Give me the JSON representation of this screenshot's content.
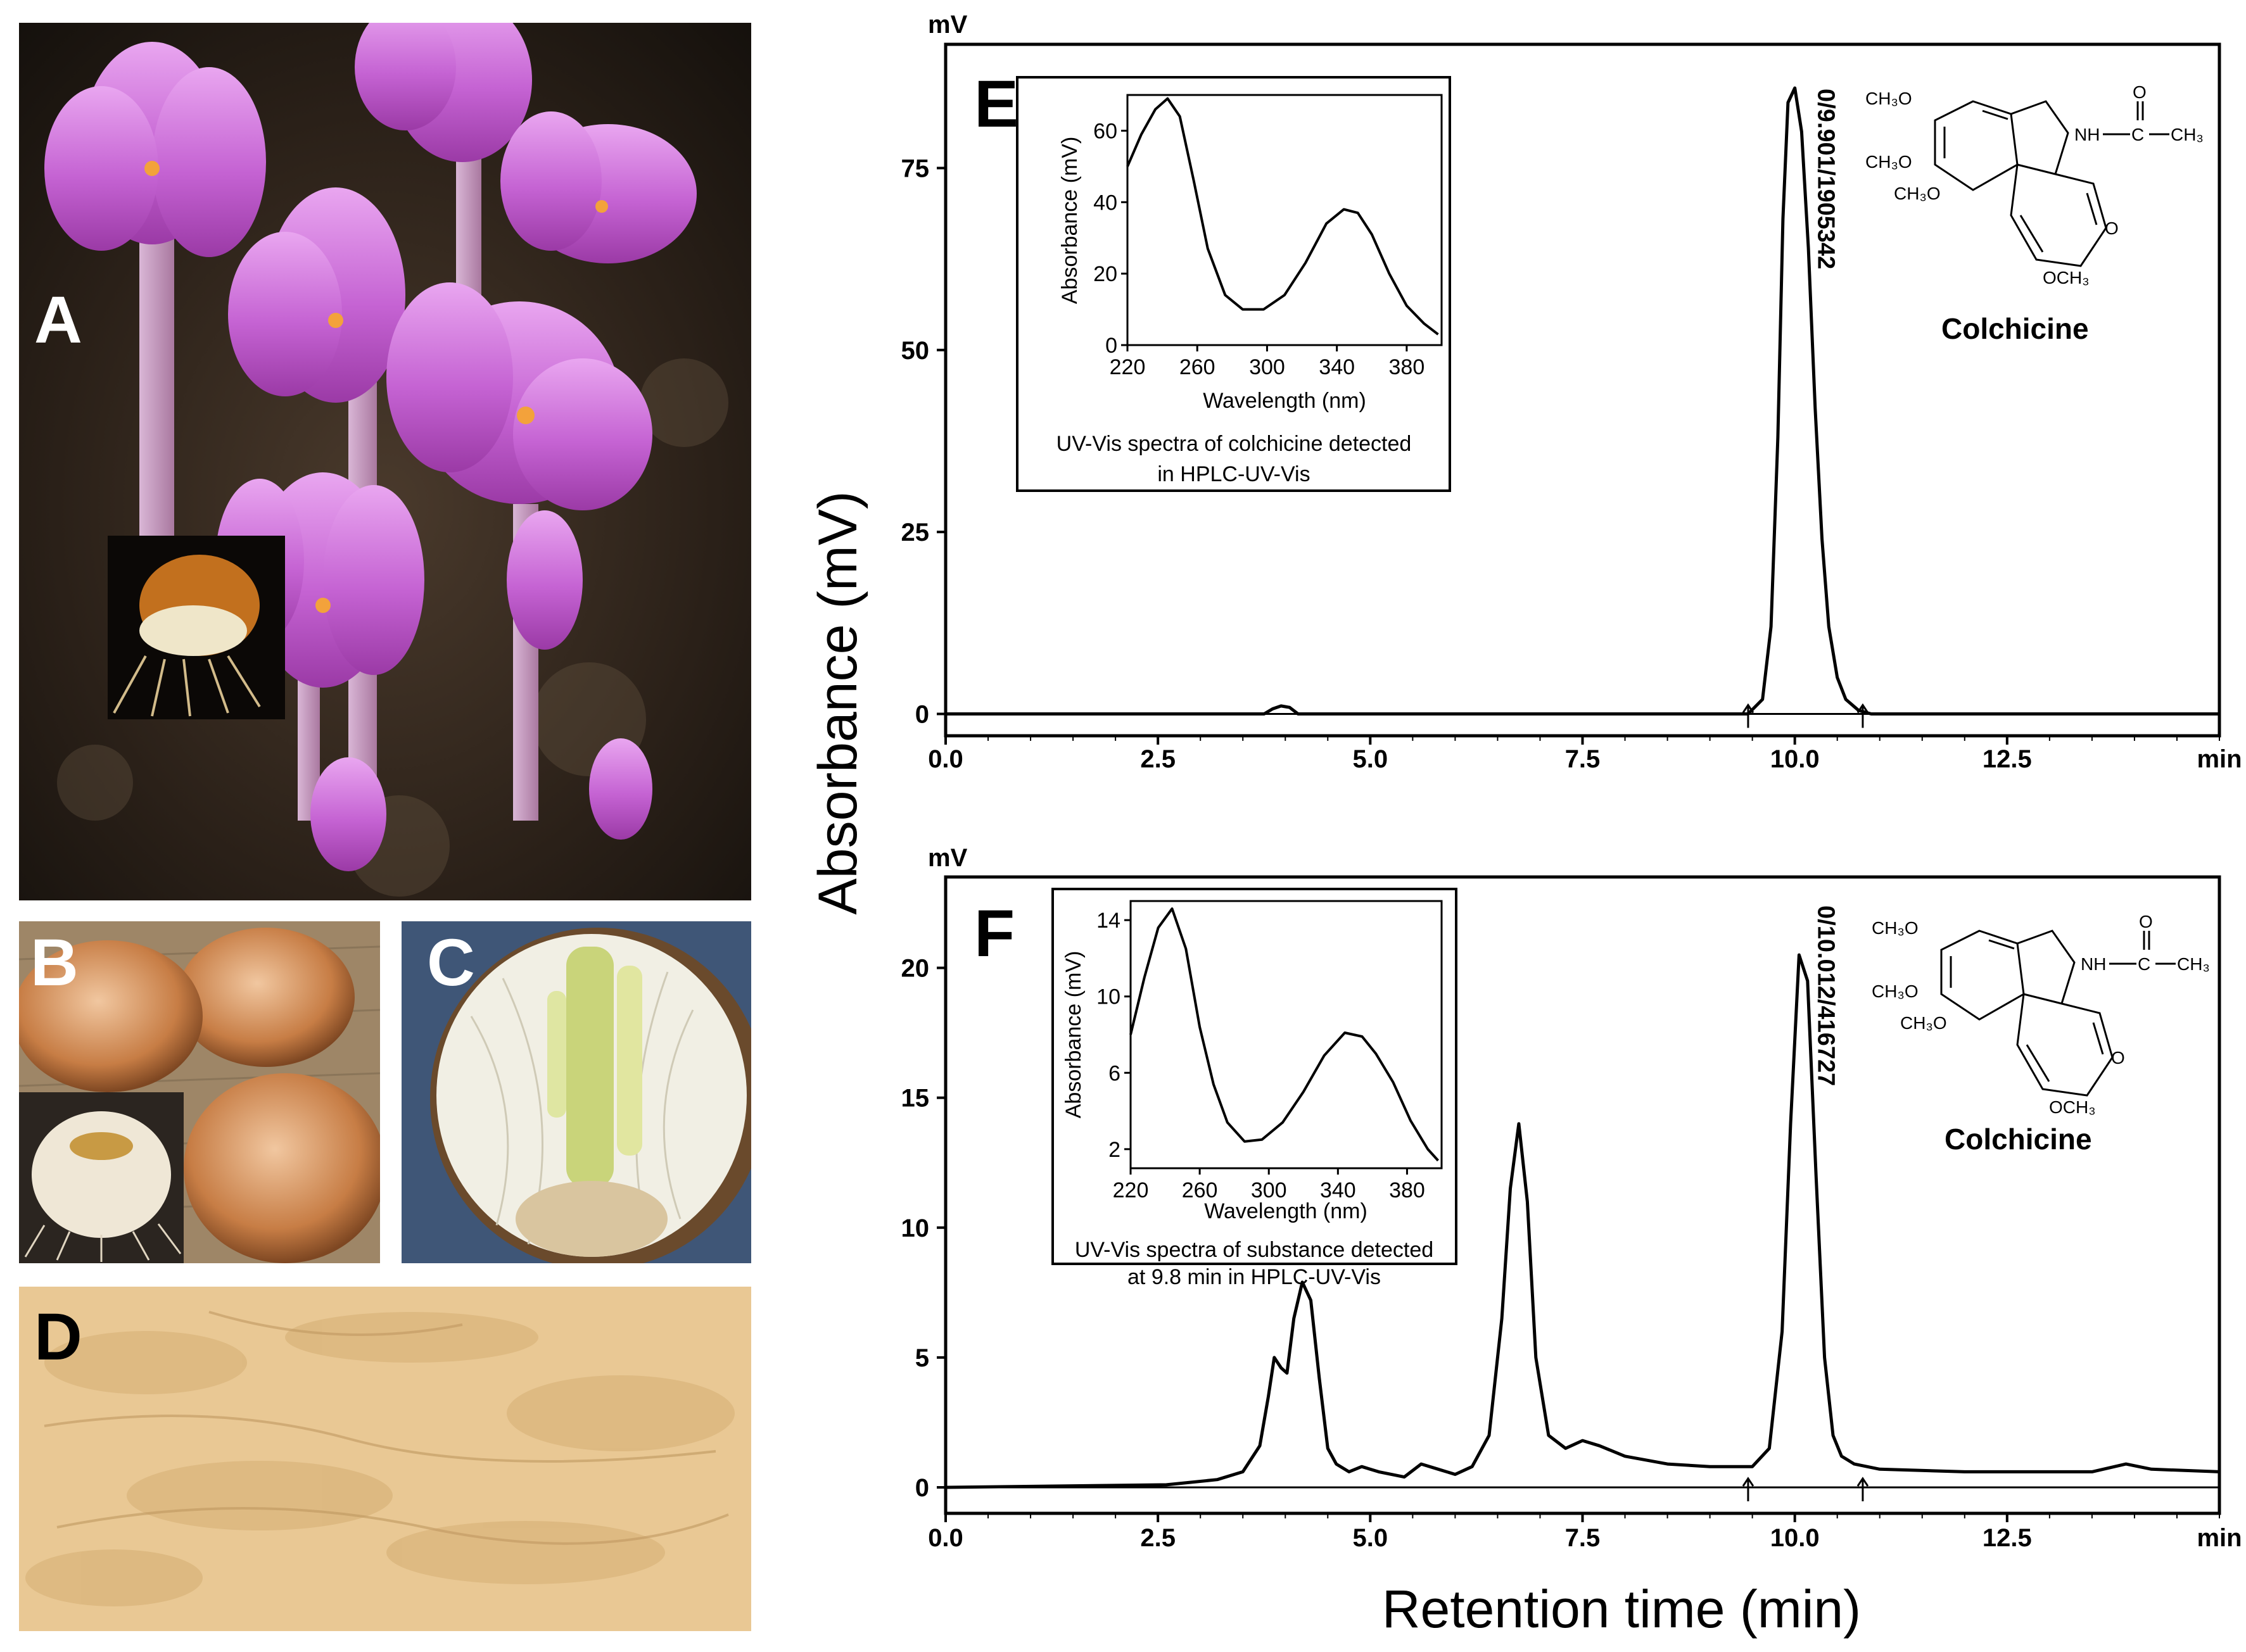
{
  "panels": {
    "A": "A",
    "B": "B",
    "C": "C",
    "D": "D",
    "E": "E",
    "F": "F"
  },
  "axes": {
    "y_title": "Absorbance (mV)",
    "x_title": "Retention time (min)",
    "unit_top": "mV",
    "unit_right": "min"
  },
  "inset_axes": {
    "ylabel": "Absorbance (mV)",
    "xlabel": "Wavelength (nm)"
  },
  "structure_label": "Colchicine",
  "structure_groups": {
    "ch3o": "CH₃O",
    "och3": "OCH₃",
    "nh": "NH",
    "c": "C",
    "ch3": "CH₃",
    "o": "O"
  },
  "chart_data": [
    {
      "id": "E",
      "type": "line",
      "title": "",
      "xlabel": "Retention time (min)",
      "ylabel": "Absorbance (mV)",
      "xlim": [
        0,
        15
      ],
      "ylim": [
        -3,
        92
      ],
      "xticks": [
        0.0,
        2.5,
        5.0,
        7.5,
        10.0,
        12.5
      ],
      "xtick_labels": [
        "0.0",
        "2.5",
        "5.0",
        "7.5",
        "10.0",
        "12.5"
      ],
      "yticks": [
        0,
        25,
        50,
        75
      ],
      "grid": false,
      "peak_label": "0/9.901/1905342",
      "markers": [
        9.45,
        10.8
      ],
      "series": [
        {
          "x": [
            0,
            3.75,
            3.85,
            3.95,
            4.05,
            4.15,
            9.45,
            9.62,
            9.72,
            9.8,
            9.86,
            9.92,
            10.0,
            10.08,
            10.16,
            10.24,
            10.32,
            10.4,
            10.5,
            10.6,
            10.75,
            10.9,
            15
          ],
          "y": [
            0,
            0,
            0.7,
            1.1,
            0.9,
            0,
            0,
            2,
            12,
            38,
            68,
            84,
            86,
            80,
            64,
            42,
            24,
            12,
            5,
            2,
            0.5,
            0,
            0
          ]
        }
      ]
    },
    {
      "id": "F",
      "type": "line",
      "title": "",
      "xlabel": "Retention time (min)",
      "ylabel": "Absorbance (mV)",
      "xlim": [
        0,
        15
      ],
      "ylim": [
        -1,
        23.5
      ],
      "xticks": [
        0.0,
        2.5,
        5.0,
        7.5,
        10.0,
        12.5
      ],
      "xtick_labels": [
        "0.0",
        "2.5",
        "5.0",
        "7.5",
        "10.0",
        "12.5"
      ],
      "yticks": [
        0,
        5,
        10,
        15,
        20
      ],
      "grid": false,
      "peak_label": "0/10.012/416727",
      "markers": [
        9.45,
        10.8
      ],
      "series": [
        {
          "x": [
            0,
            2.6,
            3.2,
            3.5,
            3.7,
            3.8,
            3.87,
            3.95,
            4.02,
            4.1,
            4.2,
            4.3,
            4.4,
            4.5,
            4.6,
            4.75,
            4.9,
            5.1,
            5.4,
            5.6,
            5.8,
            6.0,
            6.2,
            6.4,
            6.55,
            6.65,
            6.75,
            6.85,
            6.95,
            7.1,
            7.3,
            7.5,
            7.7,
            8.0,
            8.5,
            9.0,
            9.5,
            9.7,
            9.85,
            9.95,
            10.05,
            10.15,
            10.25,
            10.35,
            10.45,
            10.55,
            10.7,
            11.0,
            12.0,
            13.5,
            13.9,
            14.2,
            15
          ],
          "y": [
            0,
            0.1,
            0.3,
            0.6,
            1.6,
            3.5,
            5.0,
            4.6,
            4.4,
            6.5,
            7.9,
            7.2,
            4.2,
            1.5,
            0.9,
            0.6,
            0.8,
            0.6,
            0.4,
            0.9,
            0.7,
            0.5,
            0.8,
            2.0,
            6.5,
            11.5,
            14.0,
            11.0,
            5.0,
            2.0,
            1.5,
            1.8,
            1.6,
            1.2,
            0.9,
            0.8,
            0.8,
            1.5,
            6.0,
            14.0,
            20.5,
            19.5,
            12.0,
            5.0,
            2.0,
            1.2,
            0.9,
            0.7,
            0.6,
            0.6,
            0.9,
            0.7,
            0.6
          ]
        }
      ]
    },
    {
      "id": "E-inset",
      "type": "line",
      "title": "UV-Vis spectra of colchicine detected\nin HPLC-UV-Vis",
      "xlabel": "Wavelength (nm)",
      "ylabel": "Absorbance (mV)",
      "xlim": [
        220,
        400
      ],
      "ylim": [
        0,
        70
      ],
      "xticks": [
        220,
        260,
        300,
        340,
        380
      ],
      "yticks": [
        0,
        20,
        40,
        60
      ],
      "grid": false,
      "series": [
        {
          "x": [
            220,
            228,
            236,
            243,
            250,
            258,
            266,
            276,
            286,
            298,
            310,
            322,
            334,
            344,
            352,
            360,
            370,
            380,
            390,
            398
          ],
          "y": [
            50,
            59,
            66,
            69,
            64,
            46,
            27,
            14,
            10,
            10,
            14,
            23,
            34,
            38,
            37,
            31,
            20,
            11,
            6,
            3
          ]
        }
      ]
    },
    {
      "id": "F-inset",
      "type": "line",
      "title": "UV-Vis spectra of  substance  detected\nat 9.8 min in HPLC-UV-Vis",
      "xlabel": "Wavelength (nm)",
      "ylabel": "Absorbance (mV)",
      "xlim": [
        220,
        400
      ],
      "ylim": [
        1,
        15
      ],
      "xticks": [
        220,
        260,
        300,
        340,
        380
      ],
      "yticks": [
        2,
        6,
        10,
        14
      ],
      "grid": false,
      "series": [
        {
          "x": [
            220,
            228,
            236,
            244,
            252,
            260,
            268,
            276,
            286,
            296,
            308,
            320,
            332,
            344,
            354,
            362,
            372,
            382,
            392,
            398
          ],
          "y": [
            8,
            11,
            13.6,
            14.6,
            12.5,
            8.4,
            5.4,
            3.4,
            2.4,
            2.5,
            3.4,
            5.0,
            6.9,
            8.1,
            7.9,
            7.0,
            5.5,
            3.5,
            2.0,
            1.4
          ]
        }
      ]
    }
  ]
}
